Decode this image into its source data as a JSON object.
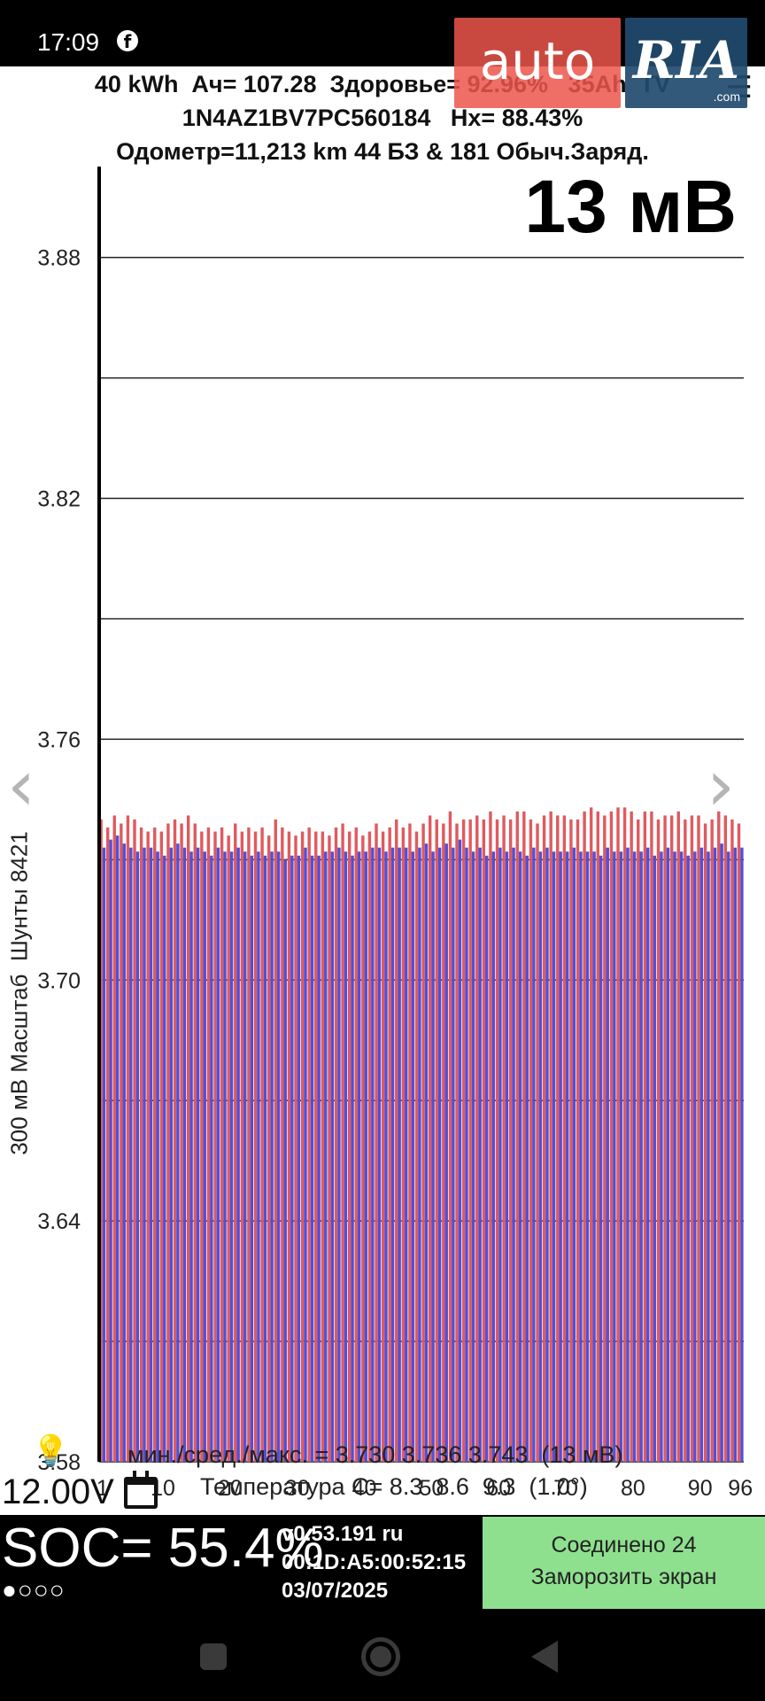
{
  "status_bar": {
    "time": "17:09",
    "app_icon": "facebook-icon"
  },
  "watermark": {
    "left": "auto",
    "right": "RIA",
    "suffix": ".com"
  },
  "header": {
    "line1": "40 kWh  Ач= 107.28  Здоровье= 92.96%   35Ah  TV",
    "line2": "1N4AZ1BV7PC560184   Hx= 88.43%",
    "line3": "Одометр=11,213 km 44 БЗ & 181 Обыч.Заряд.",
    "menu_icon": "hamburger-menu-icon"
  },
  "spread_display": "13 мВ",
  "chart_data": {
    "type": "bar",
    "ylabel": "300 мВ Масштаб  Шунты 8421",
    "ylim": [
      3.58,
      3.9
    ],
    "y_ticks": [
      3.58,
      3.64,
      3.7,
      3.76,
      3.82,
      3.88
    ],
    "y_tick_labels": [
      "3.58",
      "3.64",
      "3.70",
      "3.76",
      "3.82",
      "3.88"
    ],
    "gridlines": [
      3.61,
      3.67,
      3.73,
      3.79,
      3.85
    ],
    "x_tick_labels": [
      "1",
      "10",
      "20",
      "30",
      "40",
      "50",
      "60",
      "70",
      "80",
      "90",
      "96"
    ],
    "x_tick_cells": [
      1,
      10,
      20,
      30,
      40,
      50,
      60,
      70,
      80,
      90,
      96
    ],
    "cell_count": 96,
    "series": [
      {
        "name": "",
        "color": "#e05a5e",
        "values": [
          3.7376,
          3.7369,
          3.7379,
          3.7382,
          3.7373,
          3.7376,
          3.7362,
          3.7362,
          3.7365,
          3.7375,
          3.7378,
          3.7357,
          3.7361,
          3.7368,
          3.7366,
          3.7366,
          3.7367,
          3.7375,
          3.7379,
          3.7366,
          3.7363,
          3.7378,
          3.7378,
          3.7368,
          3.7368,
          3.7364,
          3.7372,
          3.7364,
          3.7376,
          3.7372,
          3.7378,
          3.7364,
          3.7374,
          3.7368,
          3.7371,
          3.7367,
          3.7376,
          3.7373,
          3.7369,
          3.7362,
          3.7363,
          3.7378,
          3.7362,
          3.7376,
          3.7375,
          3.7361,
          3.7379,
          3.7365,
          3.7378,
          3.7368,
          3.7372,
          3.7375,
          3.7368,
          3.7364,
          3.7369,
          3.7361,
          3.7378,
          3.7361,
          3.7372,
          3.7376,
          3.7372,
          3.7371,
          3.7368,
          3.7375,
          3.7373,
          3.7373,
          3.7374,
          3.7378,
          3.7361,
          3.7373,
          3.7368,
          3.7364,
          3.7367,
          3.7369,
          3.7358,
          3.7369,
          3.7381,
          3.7365,
          3.7367,
          3.7373,
          3.7371,
          3.7365,
          3.7372,
          3.7367,
          3.7372,
          3.7367,
          3.7367,
          3.7372,
          3.7368,
          3.7377,
          3.7373,
          3.7368,
          3.7364,
          3.7367,
          3.7372,
          3.7373
        ],
        "display": [
          3.74,
          3.738,
          3.741,
          3.739,
          3.741,
          3.74,
          3.738,
          3.737,
          3.738,
          3.737,
          3.739,
          3.74,
          3.739,
          3.741,
          3.739,
          3.737,
          3.738,
          3.737,
          3.738,
          3.736,
          3.739,
          3.737,
          3.738,
          3.737,
          3.738,
          3.736,
          3.74,
          3.738,
          3.737,
          3.736,
          3.737,
          3.738,
          3.737,
          3.737,
          3.736,
          3.738,
          3.739,
          3.737,
          3.738,
          3.736,
          3.737,
          3.739,
          3.737,
          3.738,
          3.74,
          3.738,
          3.739,
          3.737,
          3.739,
          3.741,
          3.74,
          3.739,
          3.742,
          3.739,
          3.74,
          3.74,
          3.741,
          3.74,
          3.742,
          3.74,
          3.741,
          3.74,
          3.742,
          3.742,
          3.74,
          3.739,
          3.741,
          3.742,
          3.741,
          3.741,
          3.74,
          3.74,
          3.742,
          3.743,
          3.742,
          3.741,
          3.742,
          3.743,
          3.743,
          3.742,
          3.74,
          3.742,
          3.742,
          3.74,
          3.741,
          3.741,
          3.742,
          3.74,
          3.741,
          3.741,
          3.739,
          3.74,
          3.742,
          3.741,
          3.74,
          3.739
        ]
      },
      {
        "name": "",
        "color": "#5050d8",
        "values": [
          3.7335,
          3.7349,
          3.7351,
          3.7337,
          3.7334,
          3.7337,
          3.7337,
          3.7343,
          3.7329,
          3.7341,
          3.7336,
          3.7342,
          3.7346,
          3.7342,
          3.7336,
          3.7349,
          3.7347,
          3.7339,
          3.7334,
          3.7333,
          3.733,
          3.7335,
          3.7339,
          3.7345,
          3.7348,
          3.7343,
          3.7344,
          3.7346,
          3.7351,
          3.7347,
          3.7338,
          3.733,
          3.7343,
          3.7339,
          3.7332,
          3.7336,
          3.7338,
          3.7345,
          3.7339,
          3.7345,
          3.735,
          3.7351,
          3.7333,
          3.7342,
          3.7349,
          3.7333,
          3.7347,
          3.735,
          3.7351,
          3.7351,
          3.734,
          3.7347,
          3.734,
          3.7345,
          3.7351,
          3.7346,
          3.7336,
          3.735,
          3.7346,
          3.7343,
          3.7333,
          3.7334,
          3.7348,
          3.7344,
          3.7338,
          3.7331,
          3.7339,
          3.7339,
          3.7332,
          3.7346,
          3.7339,
          3.734,
          3.7344,
          3.7334,
          3.7341,
          3.7336,
          3.7344,
          3.7334,
          3.7338,
          3.7342,
          3.734,
          3.7334,
          3.7336,
          3.7343,
          3.7339,
          3.733,
          3.7348,
          3.7344,
          3.7334,
          3.7342,
          3.7345,
          3.7344,
          3.7333,
          3.7339,
          3.7336,
          3.7337
        ],
        "display": [
          3.733,
          3.735,
          3.736,
          3.734,
          3.733,
          3.732,
          3.733,
          3.733,
          3.732,
          3.731,
          3.733,
          3.734,
          3.733,
          3.732,
          3.733,
          3.732,
          3.731,
          3.733,
          3.732,
          3.732,
          3.733,
          3.732,
          3.731,
          3.732,
          3.731,
          3.732,
          3.732,
          3.73,
          3.731,
          3.731,
          3.733,
          3.731,
          3.731,
          3.732,
          3.732,
          3.733,
          3.732,
          3.731,
          3.732,
          3.732,
          3.733,
          3.733,
          3.732,
          3.733,
          3.733,
          3.733,
          3.732,
          3.733,
          3.734,
          3.732,
          3.733,
          3.734,
          3.733,
          3.735,
          3.733,
          3.732,
          3.733,
          3.731,
          3.732,
          3.733,
          3.732,
          3.733,
          3.732,
          3.731,
          3.733,
          3.732,
          3.733,
          3.732,
          3.732,
          3.732,
          3.733,
          3.732,
          3.732,
          3.732,
          3.731,
          3.733,
          3.732,
          3.732,
          3.733,
          3.732,
          3.732,
          3.733,
          3.731,
          3.732,
          3.733,
          3.732,
          3.732,
          3.731,
          3.732,
          3.733,
          3.732,
          3.733,
          3.734,
          3.732,
          3.733,
          3.733
        ]
      }
    ]
  },
  "nav_arrows": {
    "left": "‹",
    "right": "›"
  },
  "footer": {
    "stats": "мин./сред./макс. = 3.730 3.736 3.743  (13 мВ)",
    "temperature": "Температура С= 8.3  8.6  9.3  (1.0°)",
    "aux_voltage": "12.00V",
    "bulb_icon": "💡"
  },
  "bottom_bar": {
    "soc": "SOC= 55.4%",
    "soc_dots": "●○○○",
    "version": "v0.53.191 ru",
    "mac": "00:1D:A5:00:52:15",
    "date": "03/07/2025",
    "connect_line1": "Соединено 24",
    "connect_line2": "Заморозить экран"
  }
}
